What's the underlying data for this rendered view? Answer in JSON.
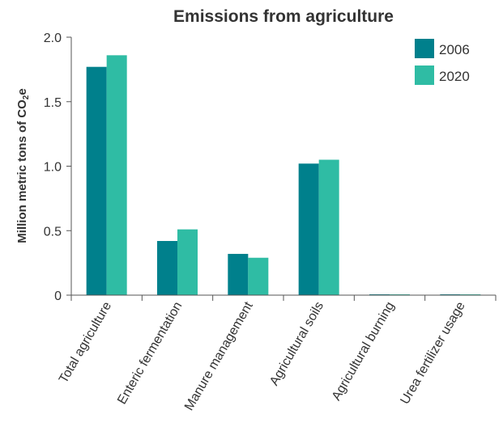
{
  "chart_data": {
    "type": "bar",
    "title": "Emissions from agriculture",
    "xlabel": "",
    "ylabel": "Million metric tons of CO",
    "ylabel_sub": "2",
    "ylabel_tail": "e",
    "ylim": [
      0,
      2.0
    ],
    "yticks": [
      {
        "value": 0,
        "label": "0"
      },
      {
        "value": 0.5,
        "label": "0.5"
      },
      {
        "value": 1.0,
        "label": "1.0"
      },
      {
        "value": 1.5,
        "label": "1.5"
      },
      {
        "value": 2.0,
        "label": "2.0"
      }
    ],
    "categories": [
      "Total agriculture",
      "Enteric fermentation",
      "Manure management",
      "Agricultural soils",
      "Agricultural burning",
      "Urea fertilizer usage"
    ],
    "series": [
      {
        "name": "2006",
        "color": "#00808c",
        "values": [
          1.77,
          0.42,
          0.32,
          1.02,
          0.004,
          0.003
        ]
      },
      {
        "name": "2020",
        "color": "#2fbca4",
        "values": [
          1.86,
          0.51,
          0.29,
          1.05,
          0.004,
          0.003
        ]
      }
    ],
    "legend_position": "top-right",
    "grid": false
  }
}
